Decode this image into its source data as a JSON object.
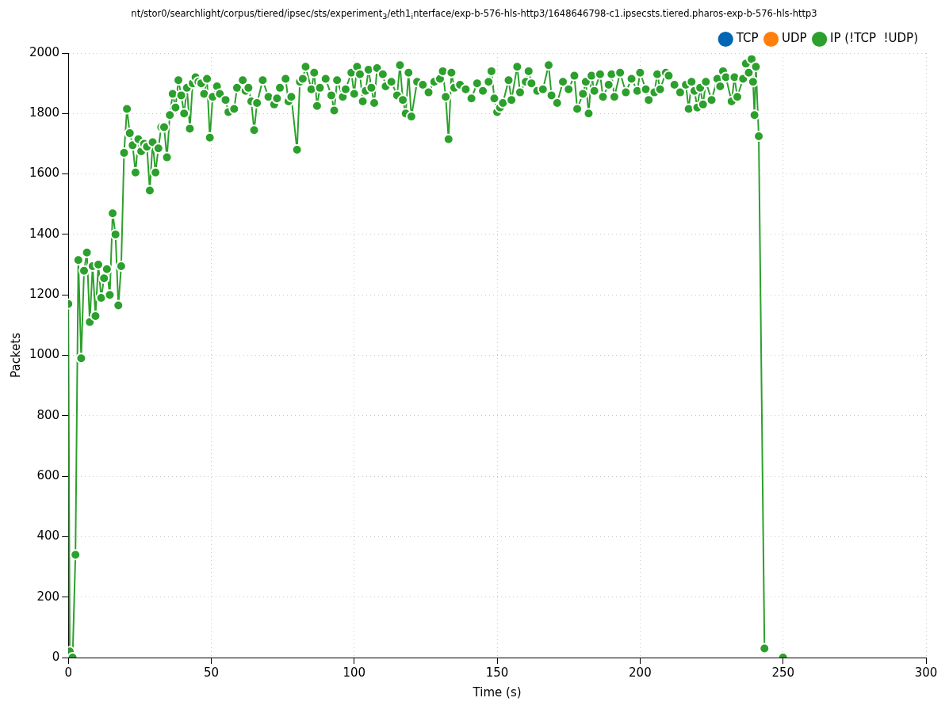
{
  "chart_data": {
    "type": "line",
    "title": "nt/stor0/searchlight/corpus/tiered/ipsec/sts/experiment$_{3}$/eth1$_{i}$nterface/exp-b-576-hls-http3/1648646798-c1.ipsecsts.tiered.pharos-exp-b-576-hls-http3",
    "xlabel": "Time (s)",
    "ylabel": "Packets",
    "xlim": [
      0,
      300
    ],
    "xticks": [
      0,
      50,
      100,
      150,
      200,
      250,
      300
    ],
    "ylim": [
      0,
      2000
    ],
    "yticks": [
      0,
      200,
      400,
      600,
      800,
      1000,
      1200,
      1400,
      1600,
      1800,
      2000
    ],
    "grid": true,
    "legend": "top right",
    "marker": "circle",
    "line_style": "solid",
    "series": [
      {
        "name": "TCP",
        "color": "#0066b3"
      },
      {
        "name": "UDP",
        "color": "#ff7f0e"
      },
      {
        "name": "IP (!TCP  !UDP)",
        "color": "#2ca02c",
        "x": [
          0,
          0.5,
          1.5,
          2.5,
          3.5,
          4.5,
          5.5,
          6.5,
          7.5,
          8.5,
          9.5,
          10.5,
          11.5,
          12.5,
          13.5,
          14.5,
          15.5,
          16.5,
          17.5,
          18.5,
          19.5,
          20.5,
          21.5,
          22.5,
          23.5,
          24.5,
          25.5,
          26.5,
          27.5,
          28.5,
          29.5,
          30.5,
          31.5,
          32.5,
          33.5,
          34.5,
          35.5,
          36.5,
          37.5,
          38.5,
          39.5,
          40.5,
          41.5,
          42.5,
          43.5,
          44.5,
          45.5,
          46.5,
          47.5,
          48.5,
          49.5,
          50.5,
          52,
          53,
          55,
          56,
          58,
          59,
          61,
          62,
          63,
          64,
          65,
          66,
          68,
          70,
          72,
          73,
          74,
          76,
          77,
          78,
          80,
          81,
          82,
          83,
          85,
          86,
          87,
          88,
          90,
          92,
          93,
          94,
          96,
          97,
          99,
          100,
          101,
          102,
          103,
          104,
          105,
          106,
          107,
          108,
          110,
          111,
          113,
          115,
          116,
          117,
          118,
          119,
          120,
          122,
          124,
          126,
          128,
          130,
          131,
          132,
          133,
          134,
          135,
          137,
          139,
          141,
          143,
          145,
          147,
          148,
          149,
          150,
          151,
          152,
          154,
          155,
          157,
          158,
          160,
          161,
          162,
          164,
          166,
          168,
          169,
          171,
          173,
          175,
          177,
          178,
          180,
          181,
          182,
          183,
          184,
          186,
          187,
          189,
          190,
          191,
          193,
          195,
          197,
          199,
          200,
          202,
          203,
          205,
          206,
          207,
          209,
          210,
          212,
          214,
          216,
          217,
          218,
          219,
          220,
          221,
          222,
          223,
          225,
          227,
          228,
          229,
          230,
          232,
          233,
          234,
          236,
          237,
          238,
          239,
          239.5,
          240,
          240.5,
          241.5,
          243.5,
          245,
          250
        ],
        "values": [
          1170,
          20,
          0,
          340,
          1315,
          990,
          1280,
          1340,
          1110,
          1295,
          1130,
          1300,
          1190,
          1255,
          1285,
          1200,
          1470,
          1400,
          1165,
          1295,
          1670,
          1815,
          1735,
          1695,
          1605,
          1715,
          1675,
          1700,
          1690,
          1545,
          1705,
          1605,
          1685,
          1755,
          1755,
          1655,
          1795,
          1865,
          1820,
          1910,
          1860,
          1800,
          1885,
          1750,
          1900,
          1920,
          1905,
          1900,
          1865,
          1915,
          1720,
          1855,
          1890,
          1865,
          1845,
          1805,
          1815,
          1885,
          1910,
          1875,
          1885,
          1840,
          1745,
          1835,
          1910,
          1855,
          1830,
          1850,
          1885,
          1915,
          1840,
          1855,
          1680,
          1905,
          1915,
          1955,
          1880,
          1935,
          1825,
          1885,
          1915,
          1860,
          1810,
          1910,
          1855,
          1880,
          1935,
          1865,
          1955,
          1930,
          1840,
          1875,
          1945,
          1885,
          1835,
          1950,
          1930,
          1890,
          1905,
          1860,
          1960,
          1845,
          1800,
          1935,
          1790,
          1905,
          1895,
          1870,
          1905,
          1915,
          1940,
          1855,
          1715,
          1935,
          1885,
          1895,
          1880,
          1850,
          1900,
          1875,
          1905,
          1940,
          1850,
          1805,
          1820,
          1835,
          1910,
          1845,
          1955,
          1870,
          1905,
          1940,
          1900,
          1875,
          1880,
          1960,
          1860,
          1835,
          1905,
          1880,
          1925,
          1815,
          1865,
          1905,
          1800,
          1925,
          1875,
          1930,
          1855,
          1895,
          1930,
          1855,
          1935,
          1870,
          1915,
          1875,
          1935,
          1880,
          1845,
          1870,
          1930,
          1880,
          1935,
          1925,
          1895,
          1870,
          1895,
          1815,
          1905,
          1875,
          1820,
          1885,
          1830,
          1905,
          1845,
          1915,
          1890,
          1940,
          1920,
          1840,
          1920,
          1855,
          1915,
          1965,
          1935,
          1980,
          1905,
          1795,
          1955,
          1725,
          30,
          null,
          0
        ]
      }
    ]
  }
}
